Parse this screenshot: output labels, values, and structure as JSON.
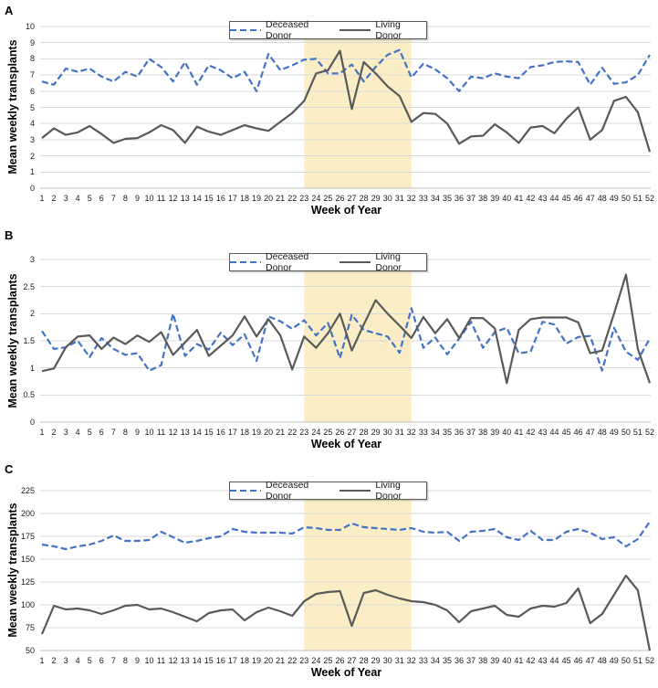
{
  "figure": {
    "xlabel": "Week of Year",
    "ylabel": "Mean weekly transplants",
    "legend": {
      "deceased": "Deceased Donor",
      "living": "Living Donor"
    },
    "colors": {
      "deceased_line": "#4472C4",
      "living_line": "#595959",
      "highlight_band": "#FBEEC6",
      "gridline": "#D9D9D9",
      "axis_line": "#BFBFBF"
    },
    "week_labels": [
      1,
      2,
      3,
      4,
      5,
      6,
      7,
      8,
      9,
      10,
      11,
      12,
      13,
      14,
      15,
      16,
      17,
      18,
      19,
      20,
      21,
      22,
      23,
      24,
      25,
      26,
      27,
      28,
      29,
      30,
      31,
      32,
      33,
      34,
      35,
      36,
      37,
      38,
      39,
      40,
      41,
      42,
      43,
      44,
      45,
      46,
      47,
      48,
      49,
      50,
      51,
      52
    ]
  },
  "chart_data": [
    {
      "type": "line",
      "panel": "A",
      "xlabel": "Week of Year",
      "ylabel": "Mean weekly transplants",
      "ylim": [
        0,
        10
      ],
      "yticks": [
        0,
        1,
        2,
        3,
        4,
        5,
        6,
        7,
        8,
        9,
        10
      ],
      "grid": true,
      "legend_position": "top-center",
      "highlight_band": {
        "x_start": 23,
        "x_end": 32
      },
      "series": [
        {
          "name": "Deceased Donor",
          "style": "dashed",
          "values": [
            6.6,
            6.4,
            7.4,
            7.2,
            7.4,
            6.9,
            6.6,
            7.2,
            6.9,
            8.0,
            7.5,
            6.6,
            7.8,
            6.4,
            7.6,
            7.3,
            6.8,
            7.2,
            6.0,
            8.3,
            7.3,
            7.6,
            7.95,
            8.0,
            7.1,
            7.1,
            7.65,
            6.6,
            7.5,
            8.25,
            8.55,
            6.85,
            7.7,
            7.35,
            6.8,
            6.0,
            6.9,
            6.8,
            7.1,
            6.9,
            6.8,
            7.5,
            7.6,
            7.8,
            7.85,
            7.8,
            6.4,
            7.45,
            6.45,
            6.55,
            7.0,
            8.25
          ]
        },
        {
          "name": "Living Donor",
          "style": "solid",
          "values": [
            3.1,
            3.7,
            3.3,
            3.45,
            3.85,
            3.35,
            2.8,
            3.05,
            3.1,
            3.45,
            3.9,
            3.6,
            2.8,
            3.8,
            3.5,
            3.3,
            3.6,
            3.9,
            3.7,
            3.55,
            4.1,
            4.65,
            5.4,
            7.1,
            7.3,
            8.5,
            4.9,
            7.8,
            7.1,
            6.3,
            5.7,
            4.1,
            4.65,
            4.6,
            4.0,
            2.75,
            3.2,
            3.25,
            3.95,
            3.45,
            2.8,
            3.75,
            3.85,
            3.4,
            4.3,
            5.0,
            3.0,
            3.6,
            5.4,
            5.65,
            4.7,
            2.25
          ]
        }
      ]
    },
    {
      "type": "line",
      "panel": "B",
      "xlabel": "Week of Year",
      "ylabel": "Mean weekly transplants",
      "ylim": [
        0,
        3
      ],
      "yticks": [
        0,
        0.5,
        1,
        1.5,
        2,
        2.5,
        3
      ],
      "grid": true,
      "legend_position": "top-center",
      "highlight_band": {
        "x_start": 23,
        "x_end": 32
      },
      "series": [
        {
          "name": "Deceased Donor",
          "style": "dashed",
          "values": [
            1.68,
            1.35,
            1.38,
            1.5,
            1.2,
            1.55,
            1.35,
            1.24,
            1.27,
            0.95,
            1.05,
            2.0,
            1.22,
            1.44,
            1.34,
            1.65,
            1.42,
            1.62,
            1.13,
            1.95,
            1.86,
            1.72,
            1.88,
            1.6,
            1.83,
            1.18,
            1.98,
            1.7,
            1.64,
            1.58,
            1.28,
            2.1,
            1.37,
            1.56,
            1.25,
            1.54,
            1.85,
            1.37,
            1.66,
            1.74,
            1.27,
            1.3,
            1.85,
            1.8,
            1.45,
            1.57,
            1.59,
            0.95,
            1.74,
            1.3,
            1.15,
            1.54
          ]
        },
        {
          "name": "Living Donor",
          "style": "solid",
          "values": [
            0.94,
            0.99,
            1.38,
            1.58,
            1.6,
            1.35,
            1.56,
            1.44,
            1.6,
            1.48,
            1.66,
            1.24,
            1.47,
            1.7,
            1.22,
            1.41,
            1.6,
            1.95,
            1.58,
            1.9,
            1.6,
            0.97,
            1.58,
            1.37,
            1.64,
            2.0,
            1.32,
            1.8,
            2.25,
            2.0,
            1.78,
            1.55,
            1.94,
            1.64,
            1.9,
            1.55,
            1.92,
            1.92,
            1.73,
            0.72,
            1.7,
            1.9,
            1.93,
            1.93,
            1.93,
            1.84,
            1.27,
            1.32,
            2.0,
            2.72,
            1.35,
            0.72
          ]
        }
      ]
    },
    {
      "type": "line",
      "panel": "C",
      "xlabel": "Week of Year",
      "ylabel": "Mean weekly transplants",
      "ylim": [
        50,
        225
      ],
      "yticks": [
        50,
        75,
        100,
        125,
        150,
        175,
        200,
        225
      ],
      "grid": true,
      "legend_position": "top-center",
      "highlight_band": {
        "x_start": 23,
        "x_end": 32
      },
      "series": [
        {
          "name": "Deceased Donor",
          "style": "dashed",
          "values": [
            166,
            164,
            161,
            164,
            166,
            170,
            176,
            170,
            170,
            171,
            180,
            174,
            168,
            170,
            173,
            175,
            183,
            180,
            179,
            179,
            179,
            178,
            185,
            184,
            182,
            182,
            189,
            185,
            184,
            183,
            182,
            184,
            180,
            179,
            180,
            170,
            180,
            181,
            183,
            174,
            171,
            181,
            171,
            171,
            180,
            183,
            179,
            172,
            174,
            164,
            172,
            191
          ]
        },
        {
          "name": "Living Donor",
          "style": "solid",
          "values": [
            68,
            99,
            95,
            96,
            94,
            90,
            94,
            99,
            100,
            95,
            96,
            92,
            87,
            82,
            91,
            94,
            95,
            83,
            92,
            97,
            93,
            88,
            104,
            112,
            114,
            115,
            77,
            113,
            116,
            111,
            107,
            104,
            103,
            100,
            94,
            81,
            93,
            96,
            99,
            89,
            87,
            96,
            99,
            98,
            102,
            118,
            80,
            90,
            111,
            132,
            116,
            50
          ]
        }
      ]
    }
  ]
}
